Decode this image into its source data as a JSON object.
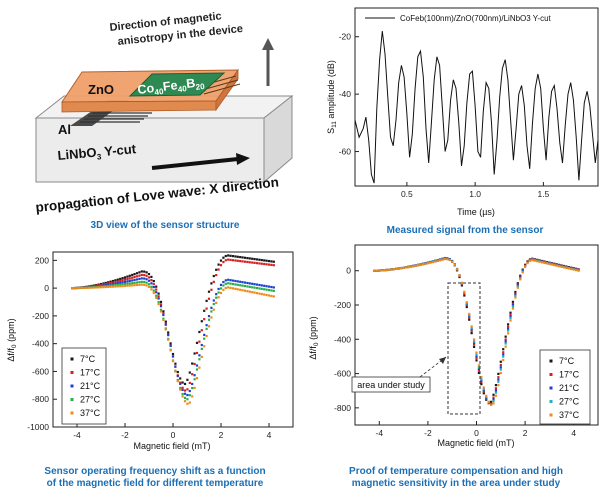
{
  "panel_a": {
    "caption": "3D view of the sensor structure",
    "label_direction": "Direction of magnetic",
    "label_direction_2": "anisotropy in the device",
    "label_zno": "ZnO",
    "label_cofeb_co": "Co",
    "label_cofeb_co_sub": "40",
    "label_cofeb_fe": "Fe",
    "label_cofeb_fe_sub": "40",
    "label_cofeb_b": "B",
    "label_cofeb_b_sub": "20",
    "label_al": "Al",
    "label_linbo_pre": "LiNbO",
    "label_linbo_sub": "3",
    "label_linbo_post": " Y-cut",
    "label_propagation": "propagation of Love wave: X direction"
  },
  "chart_data": [
    {
      "id": "measured_signal",
      "type": "line",
      "caption": "Measured signal from the sensor",
      "legend": "CoFeb(100nm)/ZnO(700nm)/LiNbO3 Y-cut",
      "xlabel": "Time (µs)",
      "ylabel_main": "S",
      "ylabel_sub": "11",
      "ylabel_rest": " amplitude (dB)",
      "xlim": [
        0.12,
        1.9
      ],
      "ylim": [
        -72,
        -10
      ],
      "xticks": [
        "0.5",
        "1.0",
        "1.5"
      ],
      "yticks": [
        "-20",
        "-40",
        "-60"
      ],
      "series": [
        {
          "name": "CoFeb(100nm)/ZnO(700nm)/LiNbO3 Y-cut",
          "color": "#111111",
          "x": [
            0.12,
            0.15,
            0.18,
            0.2,
            0.22,
            0.24,
            0.26,
            0.28,
            0.3,
            0.32,
            0.34,
            0.36,
            0.38,
            0.4,
            0.42,
            0.44,
            0.46,
            0.48,
            0.5,
            0.52,
            0.54,
            0.56,
            0.58,
            0.6,
            0.62,
            0.64,
            0.66,
            0.68,
            0.7,
            0.72,
            0.74,
            0.76,
            0.78,
            0.8,
            0.82,
            0.84,
            0.86,
            0.88,
            0.9,
            0.92,
            0.94,
            0.96,
            0.98,
            1.0,
            1.02,
            1.04,
            1.06,
            1.08,
            1.1,
            1.12,
            1.14,
            1.16,
            1.18,
            1.2,
            1.22,
            1.24,
            1.26,
            1.28,
            1.3,
            1.32,
            1.34,
            1.36,
            1.38,
            1.4,
            1.42,
            1.44,
            1.46,
            1.48,
            1.5,
            1.52,
            1.54,
            1.56,
            1.58,
            1.6,
            1.62,
            1.64,
            1.66,
            1.68,
            1.7,
            1.72,
            1.74,
            1.76,
            1.78,
            1.8,
            1.82,
            1.84,
            1.86,
            1.88,
            1.9
          ],
          "y": [
            -49,
            -55,
            -52,
            -48,
            -56,
            -68,
            -71,
            -45,
            -28,
            -18,
            -26,
            -41,
            -55,
            -58,
            -49,
            -36,
            -30,
            -34,
            -47,
            -62,
            -54,
            -38,
            -27,
            -25,
            -34,
            -52,
            -64,
            -50,
            -35,
            -27,
            -30,
            -45,
            -60,
            -56,
            -42,
            -35,
            -38,
            -50,
            -65,
            -58,
            -43,
            -33,
            -32,
            -44,
            -60,
            -62,
            -46,
            -36,
            -38,
            -50,
            -68,
            -56,
            -41,
            -31,
            -28,
            -35,
            -49,
            -63,
            -52,
            -40,
            -37,
            -44,
            -58,
            -66,
            -50,
            -38,
            -33,
            -38,
            -52,
            -63,
            -48,
            -39,
            -37,
            -45,
            -57,
            -64,
            -51,
            -40,
            -36,
            -42,
            -55,
            -70,
            -56,
            -43,
            -39,
            -44,
            -54,
            -64,
            -56
          ]
        }
      ]
    },
    {
      "id": "freq_shift",
      "type": "scatter",
      "caption_line1": "Sensor operating frequency shift as a function",
      "caption_line2": "of the magnetic field for different temperature",
      "xlabel": "Magnetic field (mT)",
      "ylabel_main": "Δf/f",
      "ylabel_sub": "0",
      "ylabel_rest": " (ppm)",
      "xlim": [
        -5,
        5
      ],
      "ylim": [
        -1000,
        260
      ],
      "xticks": [
        "-4",
        "-2",
        "0",
        "2",
        "4"
      ],
      "yticks": [
        "200",
        "0",
        "-200",
        "-400",
        "-600",
        "-800",
        "-1000"
      ],
      "series": [
        {
          "name": "7°C",
          "color": "#1a1a1a",
          "min_x": 0.5,
          "min_y": -690,
          "left_peak": 120,
          "right_peak": 235,
          "right_end": 190
        },
        {
          "name": "17°C",
          "color": "#d62020",
          "min_x": 0.55,
          "min_y": -740,
          "left_peak": 95,
          "right_peak": 205,
          "right_end": 165
        },
        {
          "name": "21°C",
          "color": "#1f3fd0",
          "min_x": 0.6,
          "min_y": -770,
          "left_peak": 70,
          "right_peak": 60,
          "right_end": 5
        },
        {
          "name": "27°C",
          "color": "#22b04a",
          "min_x": 0.6,
          "min_y": -800,
          "left_peak": 45,
          "right_peak": 35,
          "right_end": -20
        },
        {
          "name": "37°C",
          "color": "#f08a18",
          "min_x": 0.65,
          "min_y": -835,
          "left_peak": 25,
          "right_peak": 5,
          "right_end": -60
        }
      ]
    },
    {
      "id": "compensated",
      "type": "scatter",
      "caption_line1": "Proof of temperature compensation and high",
      "caption_line2": "magnetic sensitivity in the area under study",
      "xlabel": "Magnetic field (mT)",
      "ylabel_main": "Δf/f",
      "ylabel_sub": "0",
      "ylabel_rest": " (ppm)",
      "annotation": "area under study",
      "xlim": [
        -5,
        5
      ],
      "ylim": [
        -900,
        150
      ],
      "xticks": [
        "-4",
        "-2",
        "0",
        "2",
        "4"
      ],
      "yticks": [
        "0",
        "-200",
        "-400",
        "-600",
        "-800"
      ],
      "series": [
        {
          "name": "7°C",
          "color": "#1a1a1a",
          "min_x": 0.55,
          "min_y": -775,
          "left_peak": 70,
          "right_peak": 70,
          "right_end": 8
        },
        {
          "name": "17°C",
          "color": "#d62020",
          "min_x": 0.58,
          "min_y": -778,
          "left_peak": 72,
          "right_peak": 68,
          "right_end": 6
        },
        {
          "name": "21°C",
          "color": "#1f3fd0",
          "min_x": 0.6,
          "min_y": -780,
          "left_peak": 74,
          "right_peak": 66,
          "right_end": 4
        },
        {
          "name": "27°C",
          "color": "#22b0c0",
          "min_x": 0.62,
          "min_y": -782,
          "left_peak": 70,
          "right_peak": 64,
          "right_end": 2
        },
        {
          "name": "37°C",
          "color": "#f08a18",
          "min_x": 0.65,
          "min_y": -785,
          "left_peak": 68,
          "right_peak": 62,
          "right_end": 0
        }
      ]
    }
  ]
}
